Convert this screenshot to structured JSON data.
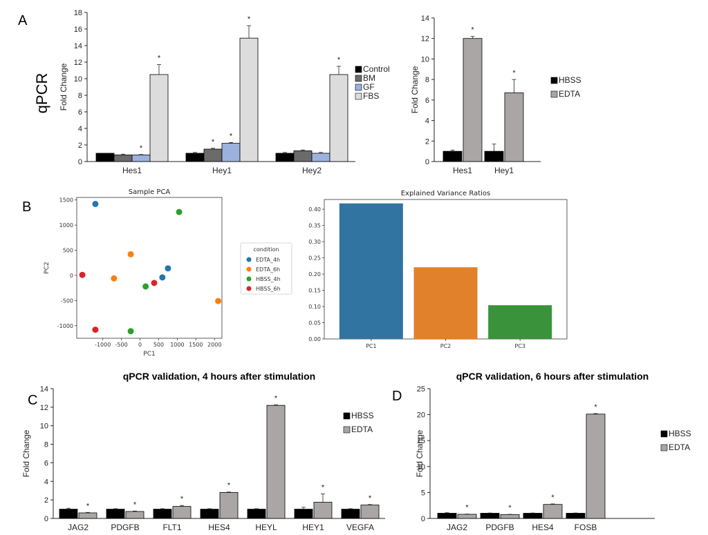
{
  "panel_labels": {
    "a": "A",
    "b": "B",
    "c": "C",
    "d": "D"
  },
  "side_label": "qPCR",
  "chart_data": [
    {
      "id": "A1",
      "type": "bar",
      "title": "",
      "ylabel": "Fold Change",
      "ylim": [
        0,
        18
      ],
      "yticks": [
        0,
        2,
        4,
        6,
        8,
        10,
        12,
        14,
        16,
        18
      ],
      "categories": [
        "Hes1",
        "Hey1",
        "Hey2"
      ],
      "series": [
        {
          "name": "Control",
          "color": "#000000",
          "values": [
            1.0,
            1.0,
            1.0
          ],
          "errors": [
            0.0,
            0.1,
            0.1
          ],
          "sig": [
            false,
            false,
            false
          ]
        },
        {
          "name": "BM",
          "color": "#6b6b6b",
          "values": [
            0.8,
            1.5,
            1.3
          ],
          "errors": [
            0.1,
            0.1,
            0.1
          ],
          "sig": [
            false,
            true,
            false
          ]
        },
        {
          "name": "GF",
          "color": "#9db1dd",
          "values": [
            0.8,
            2.2,
            1.0
          ],
          "errors": [
            0.05,
            0.1,
            0.1
          ],
          "sig": [
            true,
            true,
            false
          ]
        },
        {
          "name": "FBS",
          "color": "#dcdcdc",
          "values": [
            10.5,
            14.9,
            10.5
          ],
          "errors": [
            1.2,
            1.5,
            1.0
          ],
          "sig": [
            true,
            true,
            true
          ]
        }
      ],
      "sig_label": "*",
      "legend": "right"
    },
    {
      "id": "A2",
      "type": "bar",
      "title": "",
      "ylabel": "Fold Change",
      "ylim": [
        0,
        14
      ],
      "yticks": [
        0,
        2,
        4,
        6,
        8,
        10,
        12,
        14
      ],
      "categories": [
        "Hes1",
        "Hey1"
      ],
      "series": [
        {
          "name": "HBSS",
          "color": "#000000",
          "values": [
            1.0,
            1.0
          ],
          "errors": [
            0.1,
            0.7
          ],
          "sig": [
            false,
            false
          ]
        },
        {
          "name": "EDTA",
          "color": "#aaa6a6",
          "values": [
            12.0,
            6.7
          ],
          "errors": [
            0.2,
            1.3
          ],
          "sig": [
            true,
            true
          ]
        }
      ],
      "sig_label": "*",
      "legend": "right"
    },
    {
      "id": "B1",
      "type": "scatter",
      "title": "Sample PCA",
      "xlabel": "PC1",
      "ylabel": "PC2",
      "xlim": [
        -1700,
        2200
      ],
      "ylim": [
        -1250,
        1550
      ],
      "xticks": [
        -1000,
        -500,
        0,
        500,
        1000,
        1500,
        2000
      ],
      "yticks": [
        -1000,
        -500,
        0,
        500,
        1000,
        1500
      ],
      "legend_title": "condition",
      "legend": "outside-right",
      "series": [
        {
          "name": "EDTA_4h",
          "color": "#1f77b4",
          "points": [
            [
              -1200,
              1420
            ],
            [
              750,
              140
            ],
            [
              600,
              -40
            ]
          ]
        },
        {
          "name": "EDTA_6h",
          "color": "#ff7f0e",
          "points": [
            [
              -250,
              420
            ],
            [
              -700,
              -60
            ],
            [
              2100,
              -510
            ]
          ]
        },
        {
          "name": "HBSS_4h",
          "color": "#2ca02c",
          "points": [
            [
              1050,
              1260
            ],
            [
              150,
              -220
            ],
            [
              -250,
              -1110
            ]
          ]
        },
        {
          "name": "HBSS_6h",
          "color": "#d62728",
          "points": [
            [
              -1550,
              10
            ],
            [
              380,
              -150
            ],
            [
              -1200,
              -1080
            ]
          ]
        }
      ]
    },
    {
      "id": "B2",
      "type": "bar",
      "title": "Explained Variance Ratios",
      "ylim": [
        0,
        0.43
      ],
      "yticks": [
        0.0,
        0.05,
        0.1,
        0.15,
        0.2,
        0.25,
        0.3,
        0.35,
        0.4
      ],
      "categories": [
        "PC1",
        "PC2",
        "PC3"
      ],
      "values": [
        0.418,
        0.221,
        0.104
      ],
      "colors": [
        "#3274a1",
        "#e1812c",
        "#3a923a"
      ]
    },
    {
      "id": "C",
      "type": "bar",
      "title": "qPCR validation, 4 hours after stimulation",
      "ylabel": "Fold Change",
      "ylim": [
        0,
        14
      ],
      "yticks": [
        0,
        2,
        4,
        6,
        8,
        10,
        12,
        14
      ],
      "categories": [
        "JAG2",
        "PDGFB",
        "FLT1",
        "HES4",
        "HEYL",
        "HEY1",
        "VEGFA"
      ],
      "series": [
        {
          "name": "HBSS",
          "color": "#000000",
          "values": [
            1.0,
            1.0,
            1.0,
            1.0,
            1.0,
            1.0,
            1.0
          ],
          "errors": [
            0.1,
            0.05,
            0.05,
            0.05,
            0.05,
            0.2,
            0.05
          ],
          "sig": [
            false,
            false,
            false,
            false,
            false,
            false,
            false
          ]
        },
        {
          "name": "EDTA",
          "color": "#aaa6a6",
          "values": [
            0.6,
            0.75,
            1.3,
            2.8,
            12.2,
            1.75,
            1.45
          ],
          "errors": [
            0.05,
            0.05,
            0.1,
            0.05,
            0.05,
            0.9,
            0.05
          ],
          "sig": [
            true,
            true,
            true,
            true,
            true,
            true,
            true
          ]
        }
      ],
      "sig_label": "*",
      "legend": "right"
    },
    {
      "id": "D",
      "type": "bar",
      "title": "qPCR validation, 6 hours after stimulation",
      "ylabel": "Fold Change",
      "ylim": [
        0,
        25
      ],
      "yticks": [
        0,
        5,
        10,
        15,
        20,
        25
      ],
      "categories": [
        "JAG2",
        "PDGFB",
        "HES4",
        "FOSB"
      ],
      "series": [
        {
          "name": "HBSS",
          "color": "#000000",
          "values": [
            1.0,
            1.0,
            1.0,
            1.0
          ],
          "errors": [
            0.1,
            0.05,
            0.05,
            0.05
          ],
          "sig": [
            false,
            false,
            false,
            false
          ]
        },
        {
          "name": "EDTA",
          "color": "#aaa6a6",
          "values": [
            0.8,
            0.75,
            2.7,
            20.1
          ],
          "errors": [
            0.05,
            0.05,
            0.1,
            0.1
          ],
          "sig": [
            true,
            true,
            true,
            true
          ]
        }
      ],
      "sig_label": "*",
      "legend": "right"
    }
  ]
}
